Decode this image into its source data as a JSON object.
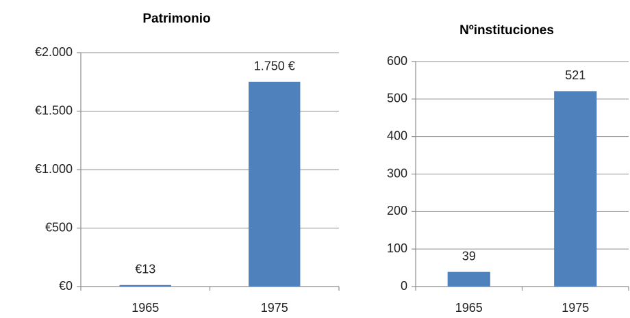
{
  "chart_data": [
    {
      "type": "bar",
      "title": "Patrimonio",
      "categories": [
        "1965",
        "1975"
      ],
      "values": [
        13,
        1750
      ],
      "value_labels": [
        "€13",
        "1.750 €"
      ],
      "color": "#4f81bd",
      "ylim": [
        0,
        2000
      ],
      "yticks": [
        {
          "value": 0,
          "label": "€0"
        },
        {
          "value": 500,
          "label": "€500"
        },
        {
          "value": 1000,
          "label": "€1.000"
        },
        {
          "value": 1500,
          "label": "€1.500"
        },
        {
          "value": 2000,
          "label": "€2.000"
        }
      ],
      "grid": true
    },
    {
      "type": "bar",
      "title": "Nºinstituciones",
      "categories": [
        "1965",
        "1975"
      ],
      "values": [
        39,
        521
      ],
      "color": "#4f81bd",
      "ylim": [
        0,
        600
      ],
      "yticks": [
        0,
        100,
        200,
        300,
        400,
        500,
        600
      ],
      "grid": true
    }
  ]
}
